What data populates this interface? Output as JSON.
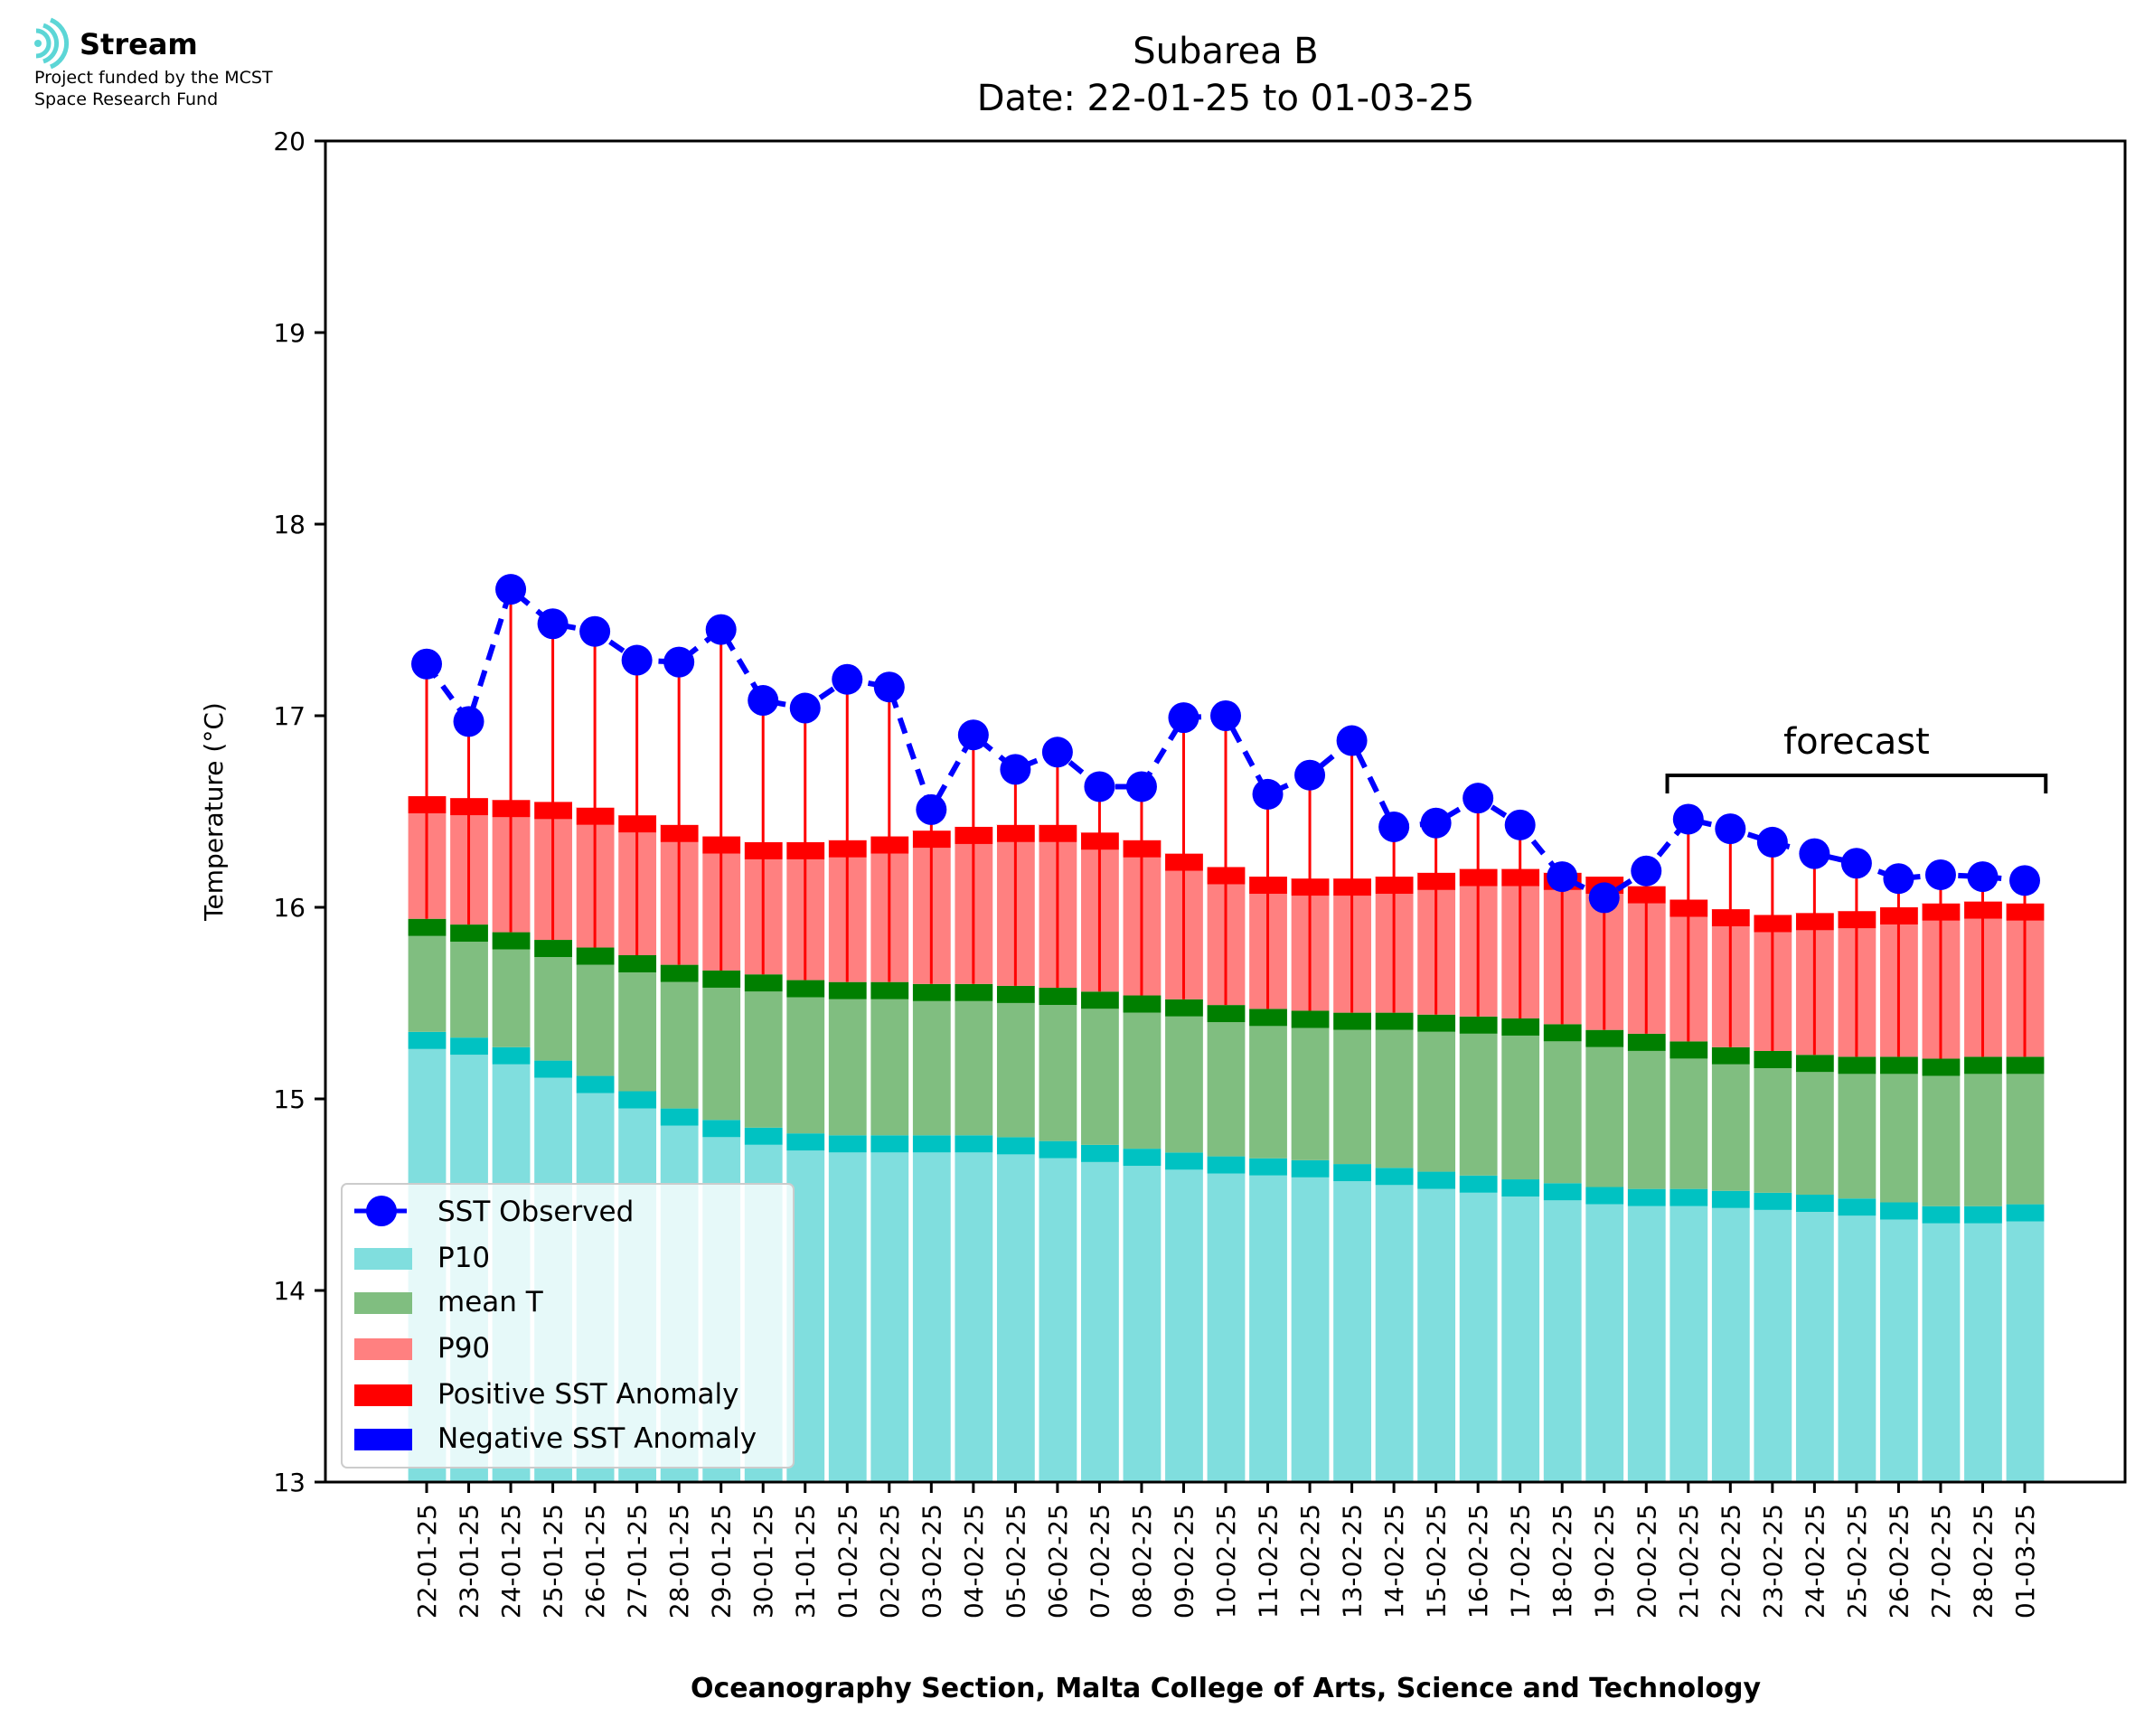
{
  "logo": {
    "name": "Stream",
    "line1": "Project funded by the MCST",
    "line2": "Space Research Fund"
  },
  "colors": {
    "p10": "#80dede",
    "p10_band": "#00c2c2",
    "mean": "#80be80",
    "mean_band": "#007f00",
    "p90": "#ff8080",
    "p90_band": "#ff0000",
    "positive": "#ff0000",
    "negative": "#0000ff",
    "observed": "#0000ff"
  },
  "chart_data": {
    "type": "bar",
    "title": "Subarea B",
    "subtitle": "Date: 22-01-25 to 01-03-25",
    "xlabel": "Oceanography Section, Malta College of Arts, Science and Technology",
    "ylabel": "Temperature (°C)",
    "ylim": [
      13,
      20
    ],
    "yticks": [
      13,
      14,
      15,
      16,
      17,
      18,
      19,
      20
    ],
    "grid": false,
    "legend_position": "bottom-left",
    "categories": [
      "22-01-25",
      "23-01-25",
      "24-01-25",
      "25-01-25",
      "26-01-25",
      "27-01-25",
      "28-01-25",
      "29-01-25",
      "30-01-25",
      "31-01-25",
      "01-02-25",
      "02-02-25",
      "03-02-25",
      "04-02-25",
      "05-02-25",
      "06-02-25",
      "07-02-25",
      "08-02-25",
      "09-02-25",
      "10-02-25",
      "11-02-25",
      "12-02-25",
      "13-02-25",
      "14-02-25",
      "15-02-25",
      "16-02-25",
      "17-02-25",
      "18-02-25",
      "19-02-25",
      "20-02-25",
      "21-02-25",
      "22-02-25",
      "23-02-25",
      "24-02-25",
      "25-02-25",
      "26-02-25",
      "27-02-25",
      "28-02-25",
      "01-03-25"
    ],
    "series": [
      {
        "name": "SST Observed",
        "kind": "line",
        "values": [
          17.27,
          16.97,
          17.66,
          17.48,
          17.44,
          17.29,
          17.28,
          17.45,
          17.08,
          17.04,
          17.19,
          17.15,
          16.51,
          16.9,
          16.72,
          16.81,
          16.63,
          16.63,
          16.99,
          17.0,
          16.59,
          16.69,
          16.87,
          16.42,
          16.44,
          16.57,
          16.43,
          16.16,
          16.05,
          16.19,
          16.46,
          16.41,
          16.34,
          16.28,
          16.23,
          16.15,
          16.17,
          16.16,
          16.14
        ]
      },
      {
        "name": "P10",
        "kind": "bar",
        "values": [
          15.35,
          15.32,
          15.27,
          15.2,
          15.12,
          15.04,
          14.95,
          14.89,
          14.85,
          14.82,
          14.81,
          14.81,
          14.81,
          14.81,
          14.8,
          14.78,
          14.76,
          14.74,
          14.72,
          14.7,
          14.69,
          14.68,
          14.66,
          14.64,
          14.62,
          14.6,
          14.58,
          14.56,
          14.54,
          14.53,
          14.53,
          14.52,
          14.51,
          14.5,
          14.48,
          14.46,
          14.44,
          14.44,
          14.45
        ]
      },
      {
        "name": "mean T",
        "kind": "bar",
        "values": [
          15.94,
          15.91,
          15.87,
          15.83,
          15.79,
          15.75,
          15.7,
          15.67,
          15.65,
          15.62,
          15.61,
          15.61,
          15.6,
          15.6,
          15.59,
          15.58,
          15.56,
          15.54,
          15.52,
          15.49,
          15.47,
          15.46,
          15.45,
          15.45,
          15.44,
          15.43,
          15.42,
          15.39,
          15.36,
          15.34,
          15.3,
          15.27,
          15.25,
          15.23,
          15.22,
          15.22,
          15.21,
          15.22,
          15.22
        ]
      },
      {
        "name": "P90",
        "kind": "bar",
        "values": [
          16.58,
          16.57,
          16.56,
          16.55,
          16.52,
          16.48,
          16.43,
          16.37,
          16.34,
          16.34,
          16.35,
          16.37,
          16.4,
          16.42,
          16.43,
          16.43,
          16.39,
          16.35,
          16.28,
          16.21,
          16.16,
          16.15,
          16.15,
          16.16,
          16.18,
          16.2,
          16.2,
          16.18,
          16.16,
          16.11,
          16.04,
          15.99,
          15.96,
          15.97,
          15.98,
          16.0,
          16.02,
          16.03,
          16.02
        ]
      },
      {
        "name": "Positive SST Anomaly",
        "kind": "anomaly"
      },
      {
        "name": "Negative SST Anomaly",
        "kind": "anomaly"
      }
    ],
    "annotations": [
      {
        "text": "forecast",
        "from": "21-02-25",
        "to": "01-03-25"
      }
    ]
  }
}
